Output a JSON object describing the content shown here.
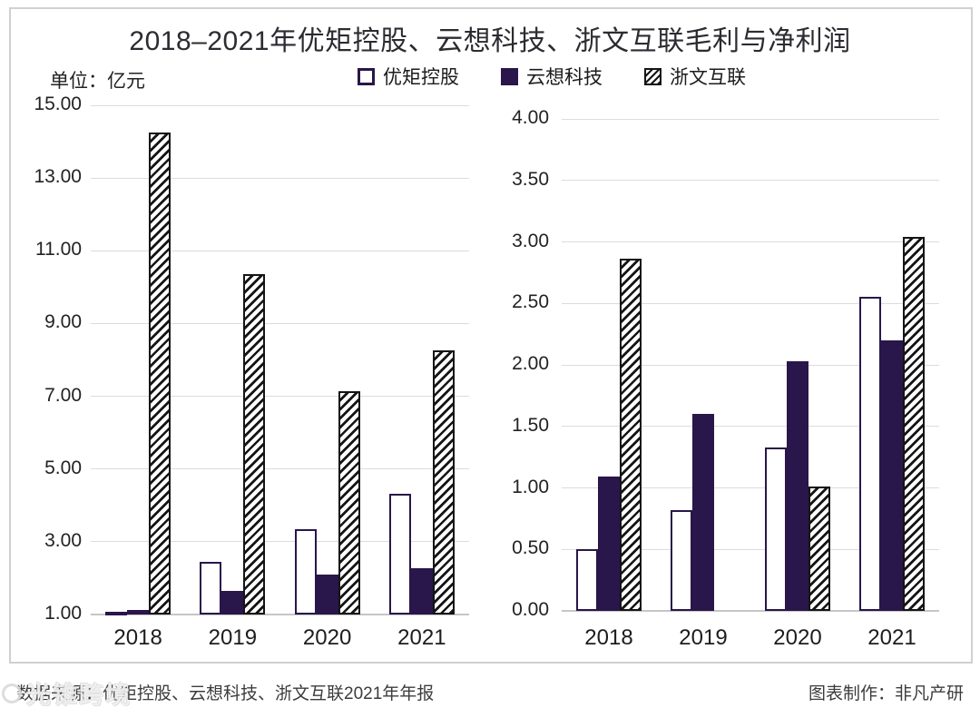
{
  "page": {
    "title": "2018–2021年优矩控股、云想科技、浙文互联毛利与净利润",
    "unit_label": "单位：亿元"
  },
  "legend": {
    "items": [
      {
        "label": "优矩控股",
        "style": "outline"
      },
      {
        "label": "云想科技",
        "style": "solid"
      },
      {
        "label": "浙文互联",
        "style": "hatched"
      }
    ]
  },
  "colors": {
    "series_navy": "#29164a",
    "hatch_ink": "#151515",
    "gridline": "#dcdcdc",
    "axis_line": "#c6c6c6",
    "frame_border": "#d0d0d0"
  },
  "footer": {
    "source": "数据来源：优矩控股、云想科技、浙文互联2021年年报",
    "credit": "图表制作：非凡产研"
  },
  "watermark": {
    "icon": "circle-logo",
    "text": "光锥跨境"
  },
  "chart_data": [
    {
      "type": "bar",
      "categories": [
        "2018",
        "2019",
        "2020",
        "2021"
      ],
      "series": [
        {
          "name": "优矩控股",
          "style": "outline",
          "values": [
            1.07,
            2.45,
            3.35,
            4.33
          ]
        },
        {
          "name": "云想科技",
          "style": "solid",
          "values": [
            1.13,
            1.66,
            2.1,
            2.27
          ]
        },
        {
          "name": "浙文互联",
          "style": "hatched",
          "values": [
            14.25,
            10.36,
            7.15,
            8.26
          ]
        }
      ],
      "ylim": [
        1,
        15
      ],
      "yticks": [
        "15.00",
        "13.00",
        "11.00",
        "9.00",
        "7.00",
        "5.00",
        "3.00",
        "1.00"
      ],
      "grid": true,
      "legend_position": "top"
    },
    {
      "type": "bar",
      "categories": [
        "2018",
        "2019",
        "2020",
        "2021"
      ],
      "series": [
        {
          "name": "优矩控股",
          "style": "outline",
          "values": [
            0.5,
            0.82,
            1.33,
            2.55
          ]
        },
        {
          "name": "云想科技",
          "style": "solid",
          "values": [
            1.09,
            1.6,
            2.03,
            2.2
          ]
        },
        {
          "name": "浙文互联",
          "style": "hatched",
          "values": [
            2.86,
            null,
            1.01,
            3.04
          ]
        }
      ],
      "ylim": [
        0,
        4
      ],
      "yticks": [
        "4.00",
        "3.50",
        "3.00",
        "2.50",
        "2.00",
        "1.50",
        "1.00",
        "0.50",
        "0.00"
      ],
      "grid": true,
      "legend_position": "top"
    }
  ]
}
